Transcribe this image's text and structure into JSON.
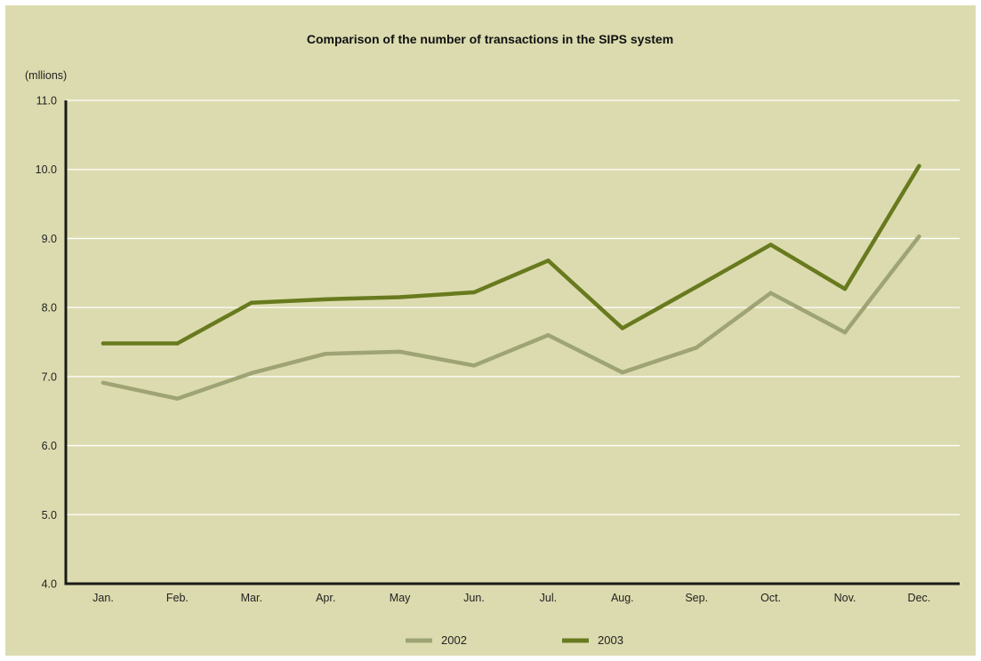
{
  "chart_data": {
    "type": "line",
    "title": "Comparison of the number of transactions in the SIPS system",
    "ylabel": "(mllions)",
    "xlabel": "",
    "categories": [
      "Jan.",
      "Feb.",
      "Mar.",
      "Apr.",
      "May",
      "Jun.",
      "Jul.",
      "Aug.",
      "Sep.",
      "Oct.",
      "Nov.",
      "Dec."
    ],
    "ylim": [
      4.0,
      11.0
    ],
    "yticks": [
      "4.0",
      "5.0",
      "6.0",
      "7.0",
      "8.0",
      "9.0",
      "10.0",
      "11.0"
    ],
    "grid": true,
    "legend_position": "bottom",
    "series": [
      {
        "name": "2002",
        "color": "#9ea474",
        "values": [
          6.91,
          6.68,
          7.05,
          7.33,
          7.36,
          7.16,
          7.6,
          7.06,
          7.42,
          8.21,
          7.64,
          9.03
        ]
      },
      {
        "name": "2003",
        "color": "#687a1e",
        "values": [
          7.48,
          7.48,
          8.07,
          8.12,
          8.15,
          8.22,
          8.68,
          7.7,
          8.3,
          8.91,
          8.27,
          10.05
        ]
      }
    ]
  },
  "colors": {
    "background": "#dcdbaf",
    "gridline": "#ffffff",
    "axis": "#1a1a1a"
  }
}
